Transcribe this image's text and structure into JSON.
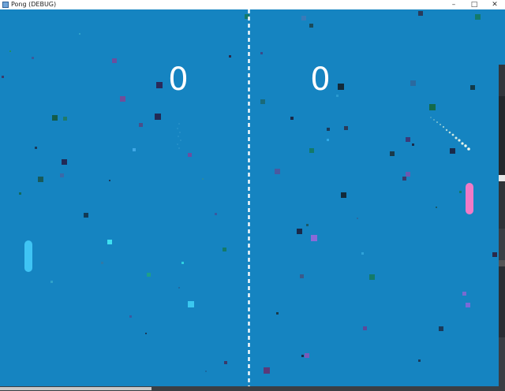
{
  "window": {
    "title": "Pong (DEBUG)",
    "icon": "app-window-icon",
    "controls": {
      "minimize": "–",
      "maximize": "□",
      "close": "✕"
    }
  },
  "game": {
    "background_color": "#1584c1",
    "scores": {
      "left": "0",
      "right": "0"
    },
    "left_paddle_color": "#3fc4f4",
    "right_paddle_color": "#f07ac6",
    "ball_color": "#ffffff"
  }
}
